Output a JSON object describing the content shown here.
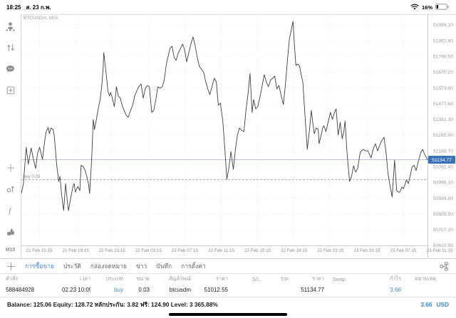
{
  "status_bar": {
    "time": "18:25",
    "date": "ส. 23 ก.พ.",
    "battery_percent": "16%"
  },
  "sidebar": {
    "timeframe_label": "M15"
  },
  "chart_data": {
    "type": "line",
    "title": "BTCUSDm, M15",
    "symbol": "BTCUSDm",
    "timeframe": "M15",
    "x_ticks": [
      "21 Feb 15:15",
      "21 Feb 19:15",
      "21 Feb 23:15",
      "22 Feb 03:15",
      "22 Feb 07:15",
      "22 Feb 11:15",
      "22 Feb 15:15",
      "22 Feb 19:15",
      "22 Feb 23:15",
      "23 Feb 03:15",
      "23 Feb 07:15",
      "23 Feb 11:15"
    ],
    "y_ticks": [
      "51959.10",
      "51862.80",
      "51766.50",
      "51670.20",
      "51573.90",
      "51477.60",
      "51381.30",
      "51285.00",
      "51188.70",
      "51092.40",
      "50996.10",
      "50899.80",
      "50803.50",
      "50707.20",
      "50610.90"
    ],
    "ylim": [
      50610.9,
      51959.1
    ],
    "grid": true,
    "legend": false,
    "current_price": "51134.77",
    "position_line": {
      "label": "buy 0.03",
      "price": 51012.55
    },
    "points": [
      [
        0,
        50928
      ],
      [
        0.005,
        50989
      ],
      [
        0.012,
        51211
      ],
      [
        0.017,
        51107
      ],
      [
        0.024,
        51207
      ],
      [
        0.029,
        51146
      ],
      [
        0.035,
        51081
      ],
      [
        0.04,
        51176
      ],
      [
        0.045,
        51211
      ],
      [
        0.052,
        51137
      ],
      [
        0.057,
        51242
      ],
      [
        0.061,
        51307
      ],
      [
        0.066,
        51333
      ],
      [
        0.069,
        51294
      ],
      [
        0.073,
        51329
      ],
      [
        0.078,
        51320
      ],
      [
        0.081,
        51281
      ],
      [
        0.087,
        51102
      ],
      [
        0.092,
        51002
      ],
      [
        0.095,
        51033
      ],
      [
        0.099,
        50924
      ],
      [
        0.104,
        50824
      ],
      [
        0.109,
        50989
      ],
      [
        0.113,
        50885
      ],
      [
        0.116,
        50824
      ],
      [
        0.121,
        50894
      ],
      [
        0.127,
        50972
      ],
      [
        0.13,
        50989
      ],
      [
        0.133,
        50937
      ],
      [
        0.139,
        50972
      ],
      [
        0.144,
        50946
      ],
      [
        0.147,
        51102
      ],
      [
        0.153,
        51089
      ],
      [
        0.156,
        51076
      ],
      [
        0.161,
        51033
      ],
      [
        0.165,
        50989
      ],
      [
        0.168,
        50928
      ],
      [
        0.173,
        51133
      ],
      [
        0.177,
        51381
      ],
      [
        0.18,
        51320
      ],
      [
        0.184,
        51372
      ],
      [
        0.187,
        51416
      ],
      [
        0.191,
        51468
      ],
      [
        0.194,
        51503
      ],
      [
        0.198,
        51589
      ],
      [
        0.201,
        51685
      ],
      [
        0.203,
        51790
      ],
      [
        0.206,
        51720
      ],
      [
        0.21,
        51633
      ],
      [
        0.213,
        51555
      ],
      [
        0.217,
        51524
      ],
      [
        0.22,
        51546
      ],
      [
        0.224,
        51511
      ],
      [
        0.229,
        51459
      ],
      [
        0.234,
        51581
      ],
      [
        0.239,
        51520
      ],
      [
        0.243,
        51516
      ],
      [
        0.248,
        51468
      ],
      [
        0.253,
        51437
      ],
      [
        0.258,
        51407
      ],
      [
        0.263,
        51394
      ],
      [
        0.269,
        51437
      ],
      [
        0.274,
        51468
      ],
      [
        0.279,
        51524
      ],
      [
        0.284,
        51555
      ],
      [
        0.289,
        51581
      ],
      [
        0.295,
        51598
      ],
      [
        0.3,
        51511
      ],
      [
        0.305,
        51568
      ],
      [
        0.31,
        51589
      ],
      [
        0.315,
        51581
      ],
      [
        0.321,
        51424
      ],
      [
        0.326,
        51437
      ],
      [
        0.331,
        51503
      ],
      [
        0.336,
        51581
      ],
      [
        0.341,
        51572
      ],
      [
        0.347,
        51581
      ],
      [
        0.352,
        51624
      ],
      [
        0.357,
        51720
      ],
      [
        0.362,
        51772
      ],
      [
        0.366,
        51816
      ],
      [
        0.371,
        51829
      ],
      [
        0.376,
        51763
      ],
      [
        0.381,
        51742
      ],
      [
        0.386,
        51785
      ],
      [
        0.392,
        51816
      ],
      [
        0.397,
        51842
      ],
      [
        0.402,
        51807
      ],
      [
        0.407,
        51733
      ],
      [
        0.412,
        51785
      ],
      [
        0.418,
        51850
      ],
      [
        0.423,
        51885
      ],
      [
        0.428,
        51829
      ],
      [
        0.433,
        51763
      ],
      [
        0.438,
        51707
      ],
      [
        0.444,
        51685
      ],
      [
        0.449,
        51668
      ],
      [
        0.454,
        51611
      ],
      [
        0.459,
        51568
      ],
      [
        0.464,
        51533
      ],
      [
        0.47,
        51589
      ],
      [
        0.475,
        51633
      ],
      [
        0.48,
        51611
      ],
      [
        0.485,
        51468
      ],
      [
        0.49,
        51481
      ],
      [
        0.496,
        51372
      ],
      [
        0.501,
        51198
      ],
      [
        0.506,
        51015
      ],
      [
        0.511,
        51089
      ],
      [
        0.516,
        51185
      ],
      [
        0.522,
        51076
      ],
      [
        0.527,
        51198
      ],
      [
        0.532,
        51285
      ],
      [
        0.537,
        51329
      ],
      [
        0.542,
        51315
      ],
      [
        0.548,
        51307
      ],
      [
        0.553,
        51437
      ],
      [
        0.558,
        51537
      ],
      [
        0.563,
        51663
      ],
      [
        0.568,
        51424
      ],
      [
        0.572,
        51503
      ],
      [
        0.577,
        51446
      ],
      [
        0.582,
        51459
      ],
      [
        0.588,
        51524
      ],
      [
        0.593,
        51589
      ],
      [
        0.598,
        51655
      ],
      [
        0.603,
        51611
      ],
      [
        0.608,
        51581
      ],
      [
        0.614,
        51624
      ],
      [
        0.619,
        51633
      ],
      [
        0.624,
        51646
      ],
      [
        0.629,
        51568
      ],
      [
        0.634,
        51589
      ],
      [
        0.64,
        51524
      ],
      [
        0.645,
        51472
      ],
      [
        0.65,
        51589
      ],
      [
        0.655,
        51742
      ],
      [
        0.66,
        51872
      ],
      [
        0.666,
        51946
      ],
      [
        0.669,
        51981
      ],
      [
        0.672,
        51850
      ],
      [
        0.676,
        51711
      ],
      [
        0.681,
        51720
      ],
      [
        0.685,
        51707
      ],
      [
        0.69,
        51642
      ],
      [
        0.693,
        51611
      ],
      [
        0.698,
        51416
      ],
      [
        0.704,
        51198
      ],
      [
        0.709,
        51307
      ],
      [
        0.714,
        51437
      ],
      [
        0.717,
        51372
      ],
      [
        0.721,
        51294
      ],
      [
        0.726,
        51329
      ],
      [
        0.731,
        51320
      ],
      [
        0.733,
        51233
      ],
      [
        0.738,
        51285
      ],
      [
        0.742,
        51329
      ],
      [
        0.745,
        51342
      ],
      [
        0.75,
        51307
      ],
      [
        0.756,
        51372
      ],
      [
        0.761,
        51424
      ],
      [
        0.766,
        51381
      ],
      [
        0.77,
        51416
      ],
      [
        0.775,
        51446
      ],
      [
        0.78,
        51285
      ],
      [
        0.785,
        51363
      ],
      [
        0.79,
        51263
      ],
      [
        0.794,
        51307
      ],
      [
        0.797,
        51372
      ],
      [
        0.802,
        51176
      ],
      [
        0.808,
        51002
      ],
      [
        0.813,
        51033
      ],
      [
        0.818,
        51098
      ],
      [
        0.823,
        51059
      ],
      [
        0.828,
        51081
      ],
      [
        0.834,
        51176
      ],
      [
        0.837,
        51189
      ],
      [
        0.842,
        51198
      ],
      [
        0.847,
        51189
      ],
      [
        0.853,
        51189
      ],
      [
        0.858,
        51163
      ],
      [
        0.861,
        51146
      ],
      [
        0.866,
        51198
      ],
      [
        0.872,
        51233
      ],
      [
        0.877,
        51189
      ],
      [
        0.882,
        51220
      ],
      [
        0.887,
        51250
      ],
      [
        0.893,
        51272
      ],
      [
        0.898,
        51176
      ],
      [
        0.903,
        51046
      ],
      [
        0.908,
        50972
      ],
      [
        0.913,
        50906
      ],
      [
        0.919,
        51133
      ],
      [
        0.924,
        50946
      ],
      [
        0.929,
        50937
      ],
      [
        0.932,
        50937
      ],
      [
        0.937,
        50968
      ],
      [
        0.941,
        50959
      ],
      [
        0.948,
        51011
      ],
      [
        0.953,
        50989
      ],
      [
        0.958,
        51046
      ],
      [
        0.962,
        51089
      ],
      [
        0.967,
        51102
      ],
      [
        0.972,
        51068
      ],
      [
        0.977,
        51120
      ],
      [
        0.983,
        51176
      ],
      [
        0.988,
        51198
      ],
      [
        0.993,
        51168
      ],
      [
        1,
        51135
      ]
    ]
  },
  "tabs": {
    "items": [
      {
        "label": "การซื้อขาย",
        "active": true
      },
      {
        "label": "ประวัติ",
        "active": false
      },
      {
        "label": "กล่องจดหมาย",
        "active": false
      },
      {
        "label": "ข่าว",
        "active": false
      },
      {
        "label": "บันทึก",
        "active": false
      },
      {
        "label": "การตั้งค่า",
        "active": false
      }
    ]
  },
  "table": {
    "columns": [
      "คำสั่ง",
      "เวลา",
      "ประเภท",
      "ขนาด",
      "สัญลักษณ์",
      "ราคา",
      "S/L",
      "T/P",
      "ราคา",
      "Swap",
      "กำไร",
      "หมายเหตุ"
    ],
    "rows": [
      {
        "order": "588484928",
        "time": "02.23 10:05",
        "type": "buy",
        "volume": "0.03",
        "symbol": "btcusdm",
        "open_price": "51012.55",
        "sl": "",
        "tp": "",
        "current_price": "51134.77",
        "swap": "",
        "profit": "3.66",
        "comment": ""
      }
    ]
  },
  "summary": {
    "balance_line": "Balance: 125.06 Equity: 128.72 หลักประกัน: 3.82 ฟรี: 124.90 Level: 3 365.88%",
    "profit": "3.66",
    "currency": "USD"
  }
}
